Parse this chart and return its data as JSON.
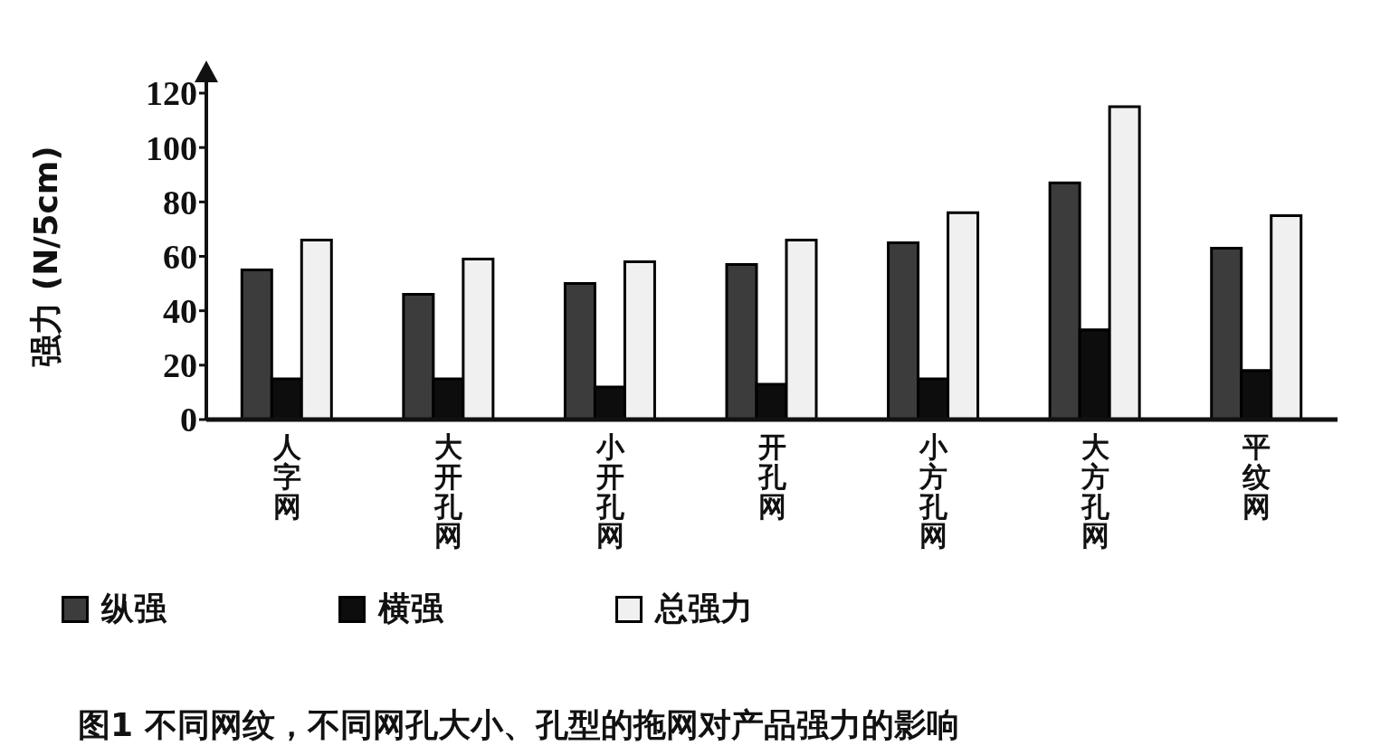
{
  "chart_data": {
    "type": "bar",
    "title": "图1 不同网纹，不同网孔大小、孔型的拖网对产品强力的影响",
    "ylabel": "强力 (N/5cm)",
    "categories": [
      "人字网",
      "大开孔网",
      "小开孔网",
      "开孔网",
      "小方孔网",
      "大方孔网",
      "平纹网"
    ],
    "series": [
      {
        "name": "纵强",
        "color": "#3c3c3c",
        "values": [
          55,
          46,
          50,
          57,
          65,
          87,
          63
        ]
      },
      {
        "name": "横强",
        "color": "#0d0d0d",
        "values": [
          15,
          15,
          12,
          13,
          15,
          33,
          18
        ]
      },
      {
        "name": "总强力",
        "color": "#f0f0f0",
        "values": [
          66,
          59,
          58,
          66,
          76,
          115,
          75
        ]
      }
    ],
    "ylim": [
      0,
      120
    ],
    "yticks": [
      0,
      20,
      40,
      60,
      80,
      100,
      120
    ],
    "legend": "bottom"
  }
}
